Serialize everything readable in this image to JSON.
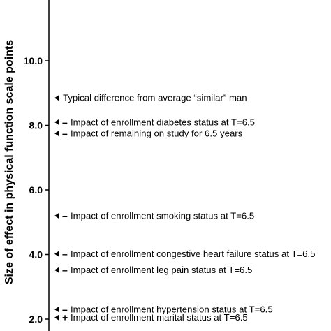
{
  "chart_data": {
    "type": "scatter",
    "ylabel": "Size of effect in physical function scale points",
    "ylim": [
      1.8,
      11.9
    ],
    "yticks": [
      "2.0",
      "4.0",
      "6.0",
      "8.0",
      "10.0"
    ],
    "annotations": [
      {
        "y": 8.85,
        "sign": "",
        "text": "Typical difference from average “similar” man"
      },
      {
        "y": 8.1,
        "sign": "–",
        "text": "Impact of enrollment diabetes status at T=6.5"
      },
      {
        "y": 7.75,
        "sign": "–",
        "text": "Impact of remaining on study for 6.5 years"
      },
      {
        "y": 5.2,
        "sign": "–",
        "text": "Impact of enrollment smoking status at T=6.5"
      },
      {
        "y": 4.02,
        "sign": "–",
        "text": "Impact of enrollment congestive heart failure status at T=6.5"
      },
      {
        "y": 3.52,
        "sign": "–",
        "text": "Impact of enrollment leg pain status at T=6.5"
      },
      {
        "y": 2.3,
        "sign": "–",
        "text": "Impact of enrollment hypertension status at T=6.5"
      },
      {
        "y": 2.05,
        "sign": "+",
        "text": "Impact of enrollment marital status at T=6.5"
      }
    ]
  }
}
